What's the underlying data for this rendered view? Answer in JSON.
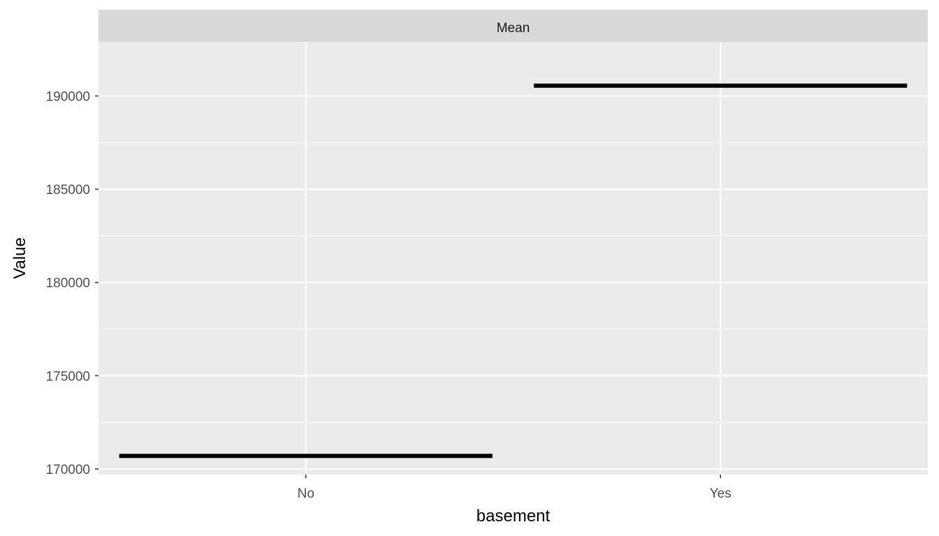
{
  "chart_data": {
    "type": "bar",
    "facet_label": "Mean",
    "categories": [
      "No",
      "Yes"
    ],
    "values": [
      170700,
      190550
    ],
    "xlabel": "basement",
    "ylabel": "Value",
    "ylim": [
      169700,
      192900
    ],
    "yticks": [
      170000,
      175000,
      180000,
      185000,
      190000
    ],
    "ytick_labels": [
      "170000",
      "175000",
      "180000",
      "185000",
      "190000"
    ],
    "grid": true,
    "legend": "none",
    "colors": {
      "panel": "#ebebeb",
      "strip": "#d9d9d9",
      "grid": "#ffffff",
      "mark": "#000000"
    }
  }
}
